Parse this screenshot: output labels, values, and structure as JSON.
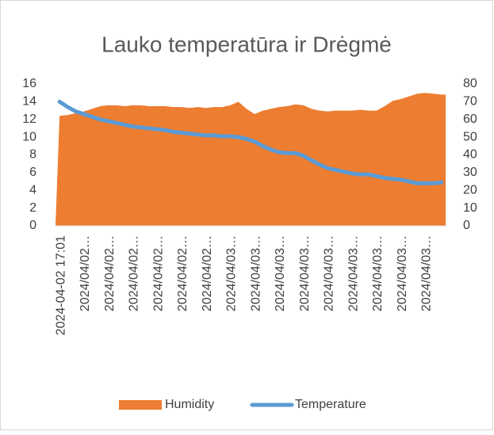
{
  "chart_data": {
    "type": "area-line",
    "title": "Lauko temperatūra ir Drėgmė",
    "categories": [
      "2024-04-02 17:01",
      null,
      null,
      "2024/04/02…",
      null,
      null,
      "2024/04/02…",
      null,
      null,
      "2024/04/02…",
      null,
      null,
      "2024/04/02…",
      null,
      null,
      "2024/04/02…",
      null,
      null,
      "2024/04/02…",
      null,
      null,
      "2024/04/03…",
      null,
      null,
      "2024/04/03…",
      null,
      null,
      "2024/04/03…",
      null,
      null,
      "2024/04/03…",
      null,
      null,
      "2024/04/03…",
      null,
      null,
      "2024/04/03…",
      null,
      null,
      "2024/04/03…",
      null,
      null,
      "2024/04/03…",
      null,
      null,
      "2024/04/03…",
      null,
      null
    ],
    "series": [
      {
        "name": "Humidity",
        "color": "#ed7d31",
        "kind": "area",
        "axis": "y2",
        "values": [
          62,
          62.5,
          63.5,
          64.5,
          66,
          67.5,
          68,
          68,
          67.5,
          68,
          68,
          67.5,
          67.5,
          67.5,
          67,
          67,
          66.5,
          67,
          66.5,
          67,
          67,
          68,
          70,
          66,
          63,
          65,
          66,
          67,
          67.5,
          68.5,
          68,
          66,
          65,
          64.5,
          65,
          65,
          65,
          65.5,
          65,
          65,
          67.5,
          70.5,
          71.5,
          73,
          74.5,
          75,
          74.5,
          74
        ]
      },
      {
        "name": "Temperature",
        "color": "#5b9bd5",
        "kind": "line",
        "axis": "y",
        "values": [
          14.0,
          13.4,
          12.9,
          12.6,
          12.3,
          12.0,
          11.8,
          11.6,
          11.4,
          11.2,
          11.1,
          11.0,
          10.9,
          10.8,
          10.6,
          10.5,
          10.4,
          10.3,
          10.2,
          10.2,
          10.1,
          10.1,
          10.0,
          9.8,
          9.5,
          9.0,
          8.6,
          8.3,
          8.2,
          8.2,
          7.9,
          7.4,
          6.9,
          6.5,
          6.3,
          6.1,
          5.9,
          5.8,
          5.8,
          5.6,
          5.4,
          5.3,
          5.2,
          5.0,
          4.8,
          4.8,
          4.8,
          4.9
        ]
      }
    ],
    "ylim": [
      0,
      16
    ],
    "yticks": [
      0,
      2,
      4,
      6,
      8,
      10,
      12,
      14,
      16
    ],
    "y2lim": [
      0,
      80
    ],
    "y2ticks": [
      0,
      10,
      20,
      30,
      40,
      50,
      60,
      70,
      80
    ],
    "legend": "bottom"
  }
}
